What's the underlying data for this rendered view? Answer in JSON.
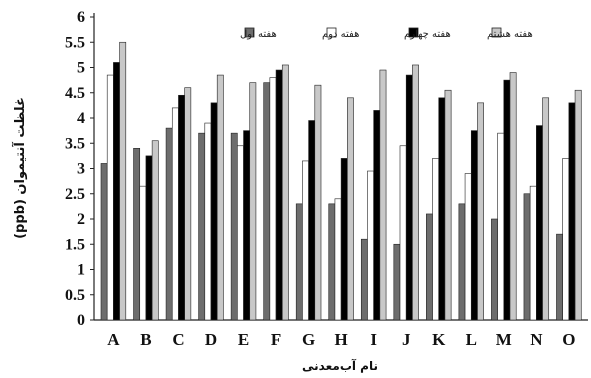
{
  "chart_data": {
    "type": "bar",
    "categories": [
      "A",
      "B",
      "C",
      "D",
      "E",
      "F",
      "G",
      "H",
      "I",
      "J",
      "K",
      "L",
      "M",
      "N",
      "O"
    ],
    "series": [
      {
        "name": "هفته اول",
        "color": "#6d6d6d",
        "values": [
          3.1,
          3.4,
          3.8,
          3.7,
          3.7,
          4.7,
          2.3,
          2.3,
          1.6,
          1.5,
          2.1,
          2.3,
          2.0,
          2.5,
          1.7
        ]
      },
      {
        "name": "هفته دوم",
        "color": "#ffffff",
        "values": [
          4.85,
          2.65,
          4.2,
          3.9,
          3.45,
          4.8,
          3.15,
          2.4,
          2.95,
          3.45,
          3.2,
          2.9,
          3.7,
          2.65,
          3.2
        ]
      },
      {
        "name": "هفته چهارم",
        "color": "#000000",
        "values": [
          5.1,
          3.25,
          4.45,
          4.3,
          3.75,
          4.95,
          3.95,
          3.2,
          4.15,
          4.85,
          4.4,
          3.75,
          4.75,
          3.85,
          4.3
        ]
      },
      {
        "name": "هفته هشتم",
        "color": "#c8c8c8",
        "values": [
          5.5,
          3.55,
          4.6,
          4.85,
          4.7,
          5.05,
          4.65,
          4.4,
          4.95,
          5.05,
          4.55,
          4.3,
          4.9,
          4.4,
          4.55
        ]
      }
    ],
    "ylim": [
      0,
      6
    ],
    "yticks": [
      "0",
      "0.5",
      "1",
      "1.5",
      "2",
      "2.5",
      "3",
      "3.5",
      "4",
      "4.5",
      "5",
      "5.5",
      "6"
    ],
    "ylabel": "غلظت آنتیموان (ppb)",
    "xlabel": "نام آب‌معدنی",
    "grid": false,
    "legend_position": "top"
  }
}
